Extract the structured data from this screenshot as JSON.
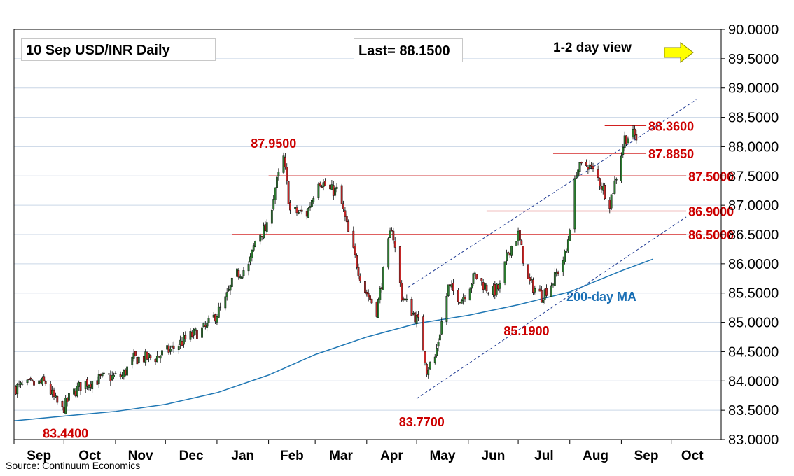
{
  "header": {
    "title": "10 Sep  USD/INR  Daily",
    "last": "Last= 88.1500",
    "view": "1-2 day view",
    "view_arrow": "right-arrow-yellow"
  },
  "source": "Source: Continuum Economics",
  "colors": {
    "up": "#2e7d32",
    "down": "#c62828",
    "level_line": "#cc0000",
    "ma": "#1f77b4",
    "label": "#cc0000",
    "ma_label": "#1a6fb5",
    "arrow": "#ffff00"
  },
  "chart_data": {
    "type": "candlestick",
    "y_axis": {
      "min": 83.0,
      "max": 90.0,
      "position": "right",
      "ticks": [
        "83.0000",
        "83.5000",
        "84.0000",
        "84.5000",
        "85.0000",
        "85.5000",
        "86.0000",
        "86.5000",
        "87.0000",
        "87.5000",
        "88.0000",
        "88.5000",
        "89.0000",
        "89.5000",
        "90.0000"
      ]
    },
    "x_axis": {
      "start": "2024-09-01",
      "end": "2025-10-31",
      "ticks": [
        {
          "label": "Sep",
          "date": "2024-09-01"
        },
        {
          "label": "Oct",
          "date": "2024-10-01"
        },
        {
          "label": "Nov",
          "date": "2024-11-01"
        },
        {
          "label": "Dec",
          "date": "2024-12-01"
        },
        {
          "label": "Jan",
          "date": "2025-01-01"
        },
        {
          "label": "Feb",
          "date": "2025-02-01"
        },
        {
          "label": "Mar",
          "date": "2025-03-01"
        },
        {
          "label": "Apr",
          "date": "2025-04-01"
        },
        {
          "label": "May",
          "date": "2025-05-01"
        },
        {
          "label": "Jun",
          "date": "2025-06-01"
        },
        {
          "label": "Jul",
          "date": "2025-07-01"
        },
        {
          "label": "Aug",
          "date": "2025-08-01"
        },
        {
          "label": "Sep",
          "date": "2025-09-01"
        },
        {
          "label": "Oct",
          "date": "2025-10-01"
        }
      ]
    },
    "price_path": [
      [
        "2024-09-01",
        83.88
      ],
      [
        "2024-09-10",
        83.93
      ],
      [
        "2024-09-20",
        83.97
      ],
      [
        "2024-09-26",
        83.65
      ],
      [
        "2024-09-30",
        83.5
      ],
      [
        "2024-10-05",
        83.75
      ],
      [
        "2024-10-12",
        83.95
      ],
      [
        "2024-10-25",
        84.05
      ],
      [
        "2024-11-05",
        84.08
      ],
      [
        "2024-11-12",
        84.38
      ],
      [
        "2024-11-25",
        84.4
      ],
      [
        "2024-12-05",
        84.55
      ],
      [
        "2024-12-15",
        84.75
      ],
      [
        "2024-12-25",
        84.9
      ],
      [
        "2025-01-05",
        85.3
      ],
      [
        "2025-01-12",
        85.8
      ],
      [
        "2025-01-20",
        85.95
      ],
      [
        "2025-01-25",
        86.5
      ],
      [
        "2025-01-31",
        86.6
      ],
      [
        "2025-02-05",
        87.3
      ],
      [
        "2025-02-10",
        87.8
      ],
      [
        "2025-02-14",
        86.9
      ],
      [
        "2025-02-24",
        86.85
      ],
      [
        "2025-03-03",
        87.45
      ],
      [
        "2025-03-10",
        87.25
      ],
      [
        "2025-03-15",
        87.25
      ],
      [
        "2025-03-22",
        86.4
      ],
      [
        "2025-03-30",
        85.6
      ],
      [
        "2025-04-07",
        85.2
      ],
      [
        "2025-04-12",
        86.0
      ],
      [
        "2025-04-16",
        86.65
      ],
      [
        "2025-04-22",
        85.45
      ],
      [
        "2025-04-28",
        85.2
      ],
      [
        "2025-05-03",
        84.95
      ],
      [
        "2025-05-07",
        84.2
      ],
      [
        "2025-05-12",
        84.4
      ],
      [
        "2025-05-20",
        85.6
      ],
      [
        "2025-05-28",
        85.4
      ],
      [
        "2025-06-05",
        85.8
      ],
      [
        "2025-06-15",
        85.5
      ],
      [
        "2025-06-20",
        85.6
      ],
      [
        "2025-06-25",
        86.2
      ],
      [
        "2025-07-01",
        86.5
      ],
      [
        "2025-07-07",
        85.7
      ],
      [
        "2025-07-15",
        85.45
      ],
      [
        "2025-07-22",
        85.7
      ],
      [
        "2025-07-30",
        86.2
      ],
      [
        "2025-08-05",
        87.6
      ],
      [
        "2025-08-12",
        87.7
      ],
      [
        "2025-08-18",
        87.45
      ],
      [
        "2025-08-25",
        87.05
      ],
      [
        "2025-08-29",
        87.5
      ],
      [
        "2025-09-03",
        88.15
      ],
      [
        "2025-09-08",
        88.2
      ],
      [
        "2025-09-10",
        88.15
      ]
    ],
    "levels": [
      {
        "label": "88.3600",
        "value": 88.36,
        "from": "2025-08-22",
        "to": "2025-09-16"
      },
      {
        "label": "87.8850",
        "value": 87.885,
        "from": "2025-07-22",
        "to": "2025-09-16"
      },
      {
        "label": "87.5000",
        "value": 87.5,
        "from": "2025-02-01",
        "to": "2025-10-10"
      },
      {
        "label": "86.9000",
        "value": 86.9,
        "from": "2025-06-12",
        "to": "2025-10-10"
      },
      {
        "label": "86.5000",
        "value": 86.5,
        "from": "2025-01-10",
        "to": "2025-10-10"
      }
    ],
    "annotations": [
      {
        "label": "87.9500",
        "date": "2025-02-04",
        "value": 88.05
      },
      {
        "label": "83.4400",
        "date": "2024-10-02",
        "value": 83.1
      },
      {
        "label": "83.7700",
        "date": "2025-05-04",
        "value": 83.3
      },
      {
        "label": "85.1900",
        "date": "2025-07-06",
        "value": 84.85
      }
    ],
    "channel": {
      "upper": [
        [
          "2025-04-26",
          85.6
        ],
        [
          "2025-10-16",
          88.8
        ]
      ],
      "lower": [
        [
          "2025-05-01",
          83.7
        ],
        [
          "2025-10-10",
          86.8
        ]
      ]
    },
    "moving_average": {
      "name": "200-day MA",
      "label_pos": {
        "date": "2025-07-30",
        "value": 85.45
      },
      "points": [
        [
          "2024-09-01",
          83.32
        ],
        [
          "2024-10-01",
          83.4
        ],
        [
          "2024-11-01",
          83.48
        ],
        [
          "2024-12-01",
          83.6
        ],
        [
          "2025-01-01",
          83.8
        ],
        [
          "2025-02-01",
          84.1
        ],
        [
          "2025-03-01",
          84.45
        ],
        [
          "2025-04-01",
          84.75
        ],
        [
          "2025-05-01",
          84.98
        ],
        [
          "2025-06-01",
          85.12
        ],
        [
          "2025-07-01",
          85.3
        ],
        [
          "2025-08-01",
          85.52
        ],
        [
          "2025-09-01",
          85.88
        ],
        [
          "2025-09-20",
          86.08
        ]
      ]
    }
  }
}
